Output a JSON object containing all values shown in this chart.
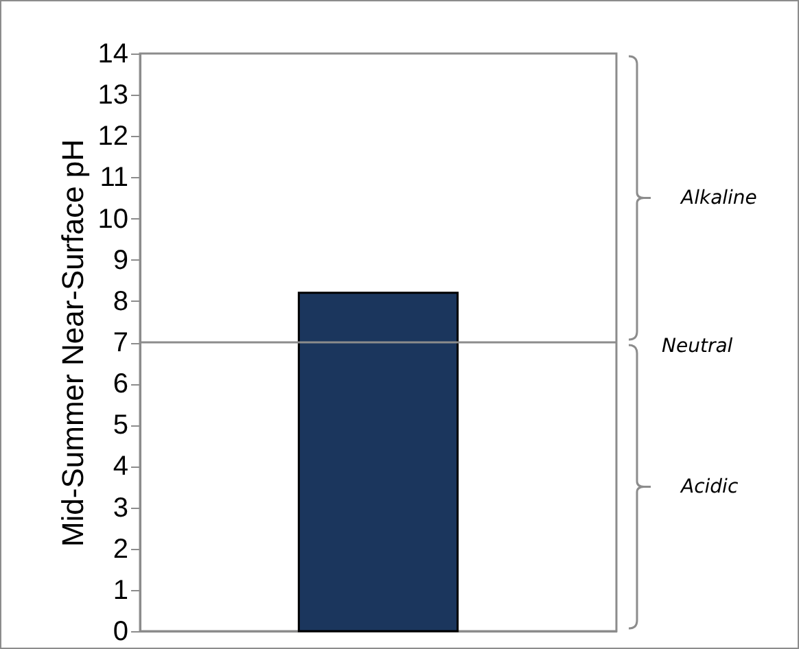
{
  "chart_data": {
    "type": "bar",
    "ylabel": "Mid-Summer Near-Surface pH",
    "categories": [
      null
    ],
    "values": [
      8.2
    ],
    "color": "#1b365d",
    "ylim": [
      0,
      14
    ],
    "yticks": [
      0,
      1,
      2,
      3,
      4,
      5,
      6,
      7,
      8,
      9,
      10,
      11,
      12,
      13,
      14
    ],
    "ref_lines": [
      {
        "axis": "y",
        "value": 7,
        "label": "Neutral",
        "color": "#8c8c8c"
      }
    ],
    "annotations": [
      "Alkaline",
      "Acidic"
    ]
  }
}
